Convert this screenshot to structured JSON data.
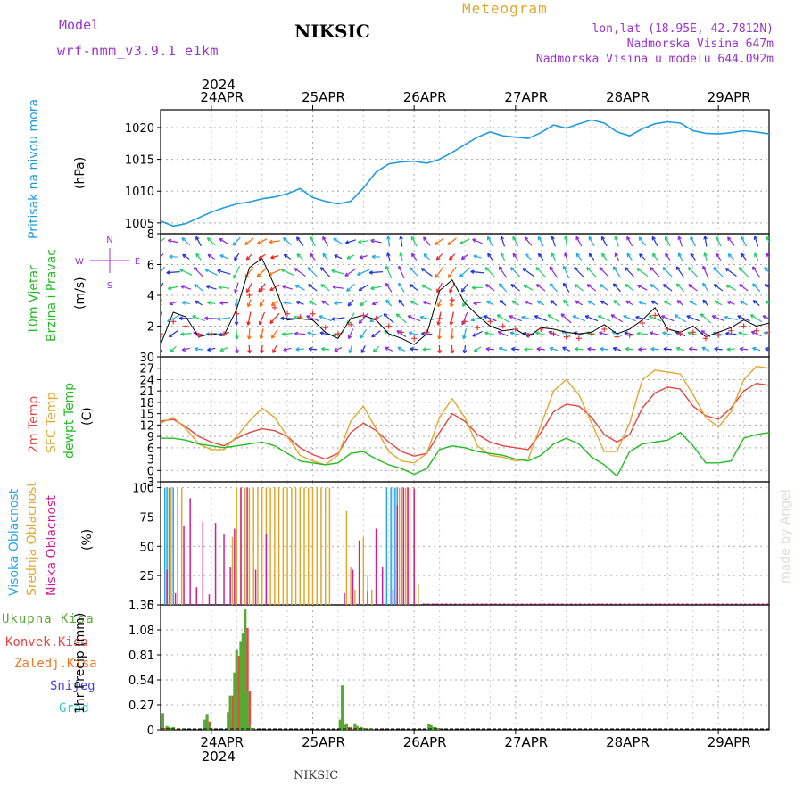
{
  "header": {
    "model_label": "Model",
    "model_name": "wrf-nmm_v3.9.1  e1km",
    "station": "NIKSIC",
    "meteogram": "Meteogram",
    "lonlat": "lon,lat (18.95E, 42.7812N)",
    "elevation": "Nadmorska Visina 647m",
    "model_elevation": "Nadmorska Visina u modelu 644.092m"
  },
  "footer": {
    "station": "NIKSIC",
    "credit": "made by Angel"
  },
  "time_axis": {
    "year": "2024",
    "days": [
      "24APR",
      "25APR",
      "26APR",
      "27APR",
      "28APR",
      "29APR"
    ],
    "start_hour": 12,
    "end_hour": 156
  },
  "colors": {
    "pressure": "#1e9be0",
    "wind_label": "#22bb22",
    "temp2m": "#e84545",
    "sfc": "#e0a82e",
    "dew": "#22bb22",
    "cloud_high": "#2aa6e0",
    "cloud_mid": "#e0a82e",
    "cloud_low": "#cc1f99",
    "precip": "#55aa33",
    "conv": "#e84545",
    "frozen": "#ee7722",
    "snow": "#4444dd",
    "hail": "#33cccc",
    "purple": "#9933cc"
  },
  "chart_data": [
    {
      "type": "line",
      "panel": "pressure",
      "ylabel": "Pritisak na nivou mora",
      "unit": "(hPa)",
      "yticks": [
        1005,
        1010,
        1015,
        1020
      ],
      "ylim": [
        1003.3,
        1022.8
      ],
      "x": [
        12,
        15,
        18,
        21,
        24,
        27,
        30,
        33,
        36,
        39,
        42,
        45,
        48,
        51,
        54,
        57,
        60,
        63,
        66,
        69,
        72,
        75,
        78,
        81,
        84,
        87,
        90,
        93,
        96,
        99,
        102,
        105,
        108,
        111,
        114,
        117,
        120,
        123,
        126,
        129,
        132,
        135,
        138,
        141,
        144,
        147,
        150,
        153,
        156
      ],
      "series": [
        {
          "values": [
            1005.3,
            1004.5,
            1004.9,
            1005.8,
            1006.7,
            1007.4,
            1008.0,
            1008.3,
            1008.8,
            1009.1,
            1009.6,
            1010.4,
            1009.0,
            1008.4,
            1008.0,
            1008.4,
            1010.5,
            1013.0,
            1014.3,
            1014.6,
            1014.7,
            1014.4,
            1015.0,
            1016.1,
            1017.3,
            1018.5,
            1019.3,
            1018.7,
            1018.5,
            1018.3,
            1019.2,
            1020.4,
            1019.9,
            1020.6,
            1021.2,
            1020.7,
            1019.3,
            1018.7,
            1019.8,
            1020.6,
            1020.9,
            1020.7,
            1019.5,
            1019.1,
            1019.0,
            1019.2,
            1019.5,
            1019.3,
            1019.0
          ]
        }
      ]
    },
    {
      "type": "line",
      "panel": "wind",
      "ylabel": [
        "10m Vjetar",
        "Brzina i Pravac"
      ],
      "unit": "(m/s)",
      "compass": {
        "n": "N",
        "w": "W",
        "e": "E",
        "s": "S"
      },
      "yticks": [
        2,
        4,
        6,
        8
      ],
      "ylim": [
        0,
        8
      ],
      "x": [
        12,
        15,
        18,
        21,
        24,
        27,
        30,
        33,
        36,
        39,
        42,
        45,
        48,
        51,
        54,
        57,
        60,
        63,
        66,
        69,
        72,
        75,
        78,
        81,
        84,
        87,
        90,
        93,
        96,
        99,
        102,
        105,
        108,
        111,
        114,
        117,
        120,
        123,
        126,
        129,
        132,
        135,
        138,
        141,
        144,
        147,
        150,
        153,
        156
      ],
      "series": [
        {
          "name": "speed",
          "values": [
            0.8,
            2.9,
            2.6,
            1.3,
            1.5,
            1.4,
            3.1,
            5.8,
            6.4,
            4.6,
            2.4,
            2.5,
            2.4,
            1.6,
            1.2,
            2.5,
            2.7,
            2.4,
            1.5,
            1.2,
            0.8,
            1.5,
            4.3,
            5.0,
            3.5,
            2.7,
            2.0,
            1.7,
            1.8,
            1.3,
            1.9,
            1.8,
            1.6,
            1.5,
            1.6,
            2.1,
            1.5,
            1.8,
            2.4,
            3.2,
            1.8,
            1.6,
            2.0,
            1.3,
            1.6,
            1.9,
            2.4,
            2.0,
            2.2
          ]
        },
        {
          "name": "gust",
          "values": [
            1.5,
            2.3,
            2.0,
            1.4,
            1.5,
            1.5,
            2.8,
            4.0,
            4.4,
            3.2,
            2.8,
            2.6,
            2.8,
            1.9,
            1.5,
            2.1,
            2.7,
            2.5,
            2.0,
            1.6,
            1.2,
            1.6,
            2.5,
            3.7,
            2.3,
            1.9,
            2.3,
            2.0,
            1.8,
            1.4,
            1.8,
            1.5,
            1.3,
            1.2,
            1.5,
            1.8,
            1.3,
            1.4,
            2.2,
            2.7,
            1.8,
            1.5,
            1.6,
            1.2,
            1.4,
            1.7,
            2.0,
            1.7,
            1.6
          ]
        }
      ],
      "direction_deg": [
        200,
        250,
        280,
        300,
        280,
        270,
        190,
        200,
        210,
        230,
        280,
        290,
        300,
        300,
        270,
        220,
        230,
        250,
        320,
        320,
        300,
        290,
        200,
        200,
        210,
        260,
        300,
        310,
        300,
        290,
        300,
        310,
        320,
        300,
        300,
        300,
        310,
        300,
        290,
        300,
        300,
        310,
        300,
        320,
        300,
        290,
        300,
        310,
        300
      ]
    },
    {
      "type": "line",
      "panel": "temperature",
      "ylabel": [
        "2m Temp",
        "SFC Temp",
        "dewpt Temp"
      ],
      "unit": "(C)",
      "yticks": [
        -3,
        0,
        3,
        6,
        9,
        12,
        15,
        18,
        21,
        24,
        27,
        30
      ],
      "ylim": [
        -3,
        30
      ],
      "x": [
        12,
        15,
        18,
        21,
        24,
        27,
        30,
        33,
        36,
        39,
        42,
        45,
        48,
        51,
        54,
        57,
        60,
        63,
        66,
        69,
        72,
        75,
        78,
        81,
        84,
        87,
        90,
        93,
        96,
        99,
        102,
        105,
        108,
        111,
        114,
        117,
        120,
        123,
        126,
        129,
        132,
        135,
        138,
        141,
        144,
        147,
        150,
        153,
        156
      ],
      "series": [
        {
          "name": "2m Temp",
          "values": [
            13.0,
            13.5,
            11.5,
            9.0,
            7.5,
            6.5,
            8.5,
            10.0,
            11.0,
            10.5,
            9.0,
            6.0,
            4.2,
            3.0,
            4.5,
            10.0,
            12.5,
            10.5,
            7.5,
            5.0,
            3.8,
            4.5,
            10.0,
            15.0,
            13.0,
            9.5,
            7.5,
            6.5,
            6.0,
            5.5,
            10.0,
            15.5,
            17.5,
            17.0,
            14.0,
            9.5,
            7.5,
            9.5,
            16.5,
            20.5,
            22.0,
            21.5,
            17.0,
            14.5,
            13.5,
            16.5,
            21.0,
            23.0,
            22.5
          ]
        },
        {
          "name": "SFC Temp",
          "values": [
            12.5,
            14.0,
            11.0,
            7.0,
            5.5,
            5.5,
            9.0,
            13.0,
            16.5,
            14.0,
            9.0,
            4.0,
            2.5,
            1.5,
            4.0,
            13.0,
            17.0,
            11.0,
            5.0,
            2.5,
            2.0,
            4.5,
            14.0,
            19.0,
            14.0,
            6.5,
            4.0,
            3.5,
            2.5,
            3.0,
            12.0,
            21.0,
            24.0,
            20.0,
            12.5,
            5.0,
            5.0,
            12.5,
            24.0,
            26.5,
            26.0,
            25.5,
            20.0,
            14.0,
            11.5,
            15.5,
            24.0,
            27.5,
            27.0
          ]
        },
        {
          "name": "dewpt Temp",
          "values": [
            8.5,
            8.5,
            8.0,
            7.0,
            6.5,
            6.0,
            6.5,
            7.0,
            7.5,
            6.5,
            4.5,
            2.5,
            2.0,
            1.5,
            2.0,
            4.5,
            5.0,
            3.0,
            1.5,
            0.5,
            -1.0,
            0.5,
            5.5,
            6.5,
            6.0,
            5.0,
            4.5,
            4.0,
            3.0,
            2.5,
            4.0,
            7.0,
            8.5,
            7.0,
            3.5,
            1.5,
            -1.5,
            5.0,
            7.0,
            7.5,
            8.0,
            10.0,
            6.5,
            2.0,
            2.0,
            2.5,
            8.5,
            9.5,
            10.0
          ]
        }
      ]
    },
    {
      "type": "bar",
      "panel": "cloud",
      "ylabel": [
        "Visoka Oblacnost",
        "Srednja Oblacnost",
        "Niska Oblacnost"
      ],
      "unit": "(%)",
      "yticks": [
        0,
        25,
        50,
        75,
        100
      ],
      "ylim": [
        0,
        105
      ],
      "x_high": [
        13,
        13.5,
        14,
        15,
        65.5,
        66.5,
        67,
        67.5,
        68,
        69
      ],
      "high": [
        100,
        100,
        100,
        100,
        100,
        100,
        100,
        100,
        100,
        100
      ],
      "x_mid": [
        14.5,
        16,
        17,
        29,
        30,
        31,
        32,
        33,
        34,
        35,
        36,
        37,
        38,
        39,
        40,
        41,
        42,
        43,
        44,
        45,
        46,
        47,
        48,
        49,
        50,
        51,
        52,
        56,
        57,
        58,
        60,
        61,
        62,
        68.5,
        69.5,
        70,
        70.5,
        71,
        72,
        73
      ],
      "mid": [
        100,
        100,
        100,
        58,
        100,
        100,
        100,
        100,
        100,
        100,
        100,
        100,
        100,
        100,
        100,
        100,
        100,
        100,
        100,
        100,
        100,
        100,
        100,
        100,
        100,
        100,
        100,
        80,
        32,
        13,
        58,
        25,
        13,
        100,
        100,
        100,
        100,
        100,
        100,
        18
      ],
      "x_low": [
        13.5,
        15.5,
        17.5,
        19,
        20.5,
        22,
        23.5,
        25,
        27,
        28.5,
        29.5,
        31,
        32.5,
        34.5,
        37,
        55.5,
        57.5,
        59,
        61,
        63,
        64.5,
        67,
        68,
        69.5,
        70.5,
        72
      ],
      "low": [
        30,
        10,
        67,
        91,
        15,
        71,
        9,
        70,
        60,
        32,
        65,
        100,
        100,
        30,
        60,
        10,
        30,
        55,
        12,
        65,
        32,
        13,
        85,
        100,
        100,
        99
      ]
    },
    {
      "type": "bar",
      "panel": "precip",
      "ylabel": [
        "Ukupna Kisa",
        "Konvek.Kisa",
        "Zaledj.Kisa",
        "Snijeg",
        "Grad"
      ],
      "unit": "1hr Precip (mm)",
      "yticks": [
        0,
        0.27,
        0.54,
        0.81,
        1.08,
        1.35
      ],
      "ylim": [
        0,
        1.35
      ],
      "x": [
        12.5,
        13.5,
        14,
        14.5,
        15,
        17,
        22.5,
        23,
        23.5,
        28,
        28.5,
        29.5,
        30,
        31,
        31.5,
        32,
        32.5,
        33,
        33.5,
        34,
        54.5,
        55,
        55.5,
        56,
        57,
        58,
        58.5,
        59.5,
        60,
        61.5,
        62,
        75.5,
        76,
        76.5,
        77,
        77.5
      ],
      "total": [
        0.18,
        0.04,
        0.03,
        0.02,
        0.03,
        0.01,
        0.11,
        0.17,
        0.04,
        0.19,
        0.37,
        0.62,
        0.87,
        0.96,
        1.04,
        1.3,
        0.42,
        0.04,
        0.02,
        0.01,
        0.11,
        0.48,
        0.04,
        0.07,
        0.03,
        0.07,
        0.04,
        0.03,
        0.02,
        0.01,
        0.01,
        0.06,
        0.05,
        0.03,
        0.03,
        0.02
      ],
      "conv": [
        0.02,
        0.02,
        0.02,
        0.01,
        0.01,
        0,
        0.06,
        0.09,
        0.02,
        0.1,
        0.37,
        0.62,
        0.8,
        0.92,
        0.98,
        1.1,
        0.42,
        0.02,
        0.01,
        0,
        0.02,
        0.05,
        0.02,
        0.03,
        0.01,
        0.03,
        0.02,
        0.01,
        0.01,
        0,
        0,
        0.03,
        0.03,
        0.02,
        0.02,
        0.01
      ]
    }
  ]
}
